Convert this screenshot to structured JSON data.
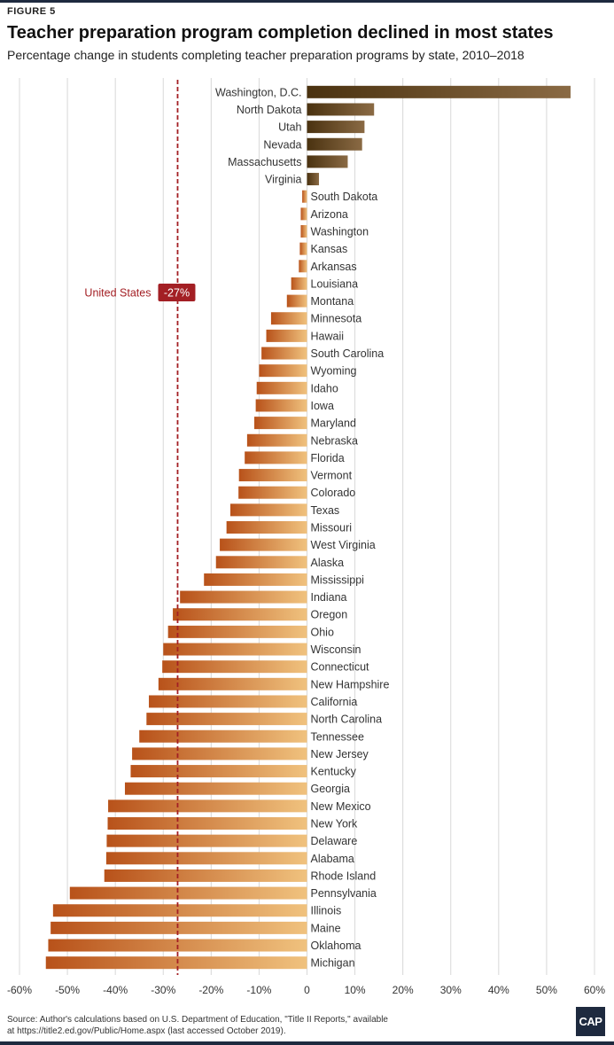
{
  "figure_label": "FIGURE 5",
  "source": "Source: Author's calculations based on U.S. Department of Education, \"Title II Reports,\" available at https://title2.ed.gov/Public/Home.aspx (last accessed October 2019).",
  "logo_text": "CAP",
  "colors": {
    "positive_start": "#4a3210",
    "positive_end": "#8a6a44",
    "negative_light": "#f0c27e",
    "negative_dark": "#b8521a",
    "reference_line": "#a31f24",
    "grid": "#d8d8d8"
  },
  "chart_data": {
    "type": "bar",
    "orientation": "horizontal",
    "title": "Teacher preparation program completion declined in most states",
    "subtitle": "Percentage change in students completing teacher preparation programs by state, 2010–2018",
    "xlim": [
      -60,
      60
    ],
    "x_ticks": [
      -60,
      -50,
      -40,
      -30,
      -20,
      -10,
      0,
      10,
      20,
      30,
      40,
      50,
      60
    ],
    "x_tick_labels": [
      "-60%",
      "-50%",
      "-40%",
      "-30%",
      "-20%",
      "-10%",
      "0",
      "10%",
      "20%",
      "30%",
      "40%",
      "50%",
      "60%"
    ],
    "grid": true,
    "reference": {
      "label": "United States",
      "value": -27,
      "value_label": "-27%"
    },
    "categories": [
      "Washington, D.C.",
      "North Dakota",
      "Utah",
      "Nevada",
      "Massachusetts",
      "Virginia",
      "South Dakota",
      "Arizona",
      "Washington",
      "Kansas",
      "Arkansas",
      "Louisiana",
      "Montana",
      "Minnesota",
      "Hawaii",
      "South Carolina",
      "Wyoming",
      "Idaho",
      "Iowa",
      "Maryland",
      "Nebraska",
      "Florida",
      "Vermont",
      "Colorado",
      "Texas",
      "Missouri",
      "West Virginia",
      "Alaska",
      "Mississippi",
      "Indiana",
      "Oregon",
      "Ohio",
      "Wisconsin",
      "Connecticut",
      "New Hampshire",
      "California",
      "North Carolina",
      "Tennessee",
      "New Jersey",
      "Kentucky",
      "Georgia",
      "New Mexico",
      "New York",
      "Delaware",
      "Alabama",
      "Rhode Island",
      "Pennsylvania",
      "Illinois",
      "Maine",
      "Oklahoma",
      "Michigan"
    ],
    "values": [
      55,
      14,
      12,
      11.5,
      8.5,
      2.5,
      -1,
      -1.3,
      -1.3,
      -1.5,
      -1.7,
      -3.3,
      -4.2,
      -7.5,
      -8.5,
      -9.5,
      -10,
      -10.5,
      -10.7,
      -11,
      -12.5,
      -13,
      -14.2,
      -14.3,
      -16,
      -16.8,
      -18.2,
      -19,
      -21.5,
      -26.5,
      -28,
      -29,
      -30,
      -30.2,
      -31,
      -33,
      -33.5,
      -35,
      -36.5,
      -36.8,
      -38,
      -41.5,
      -41.6,
      -41.8,
      -41.9,
      -42.3,
      -49.5,
      -53,
      -53.5,
      -54,
      -54.5
    ]
  }
}
